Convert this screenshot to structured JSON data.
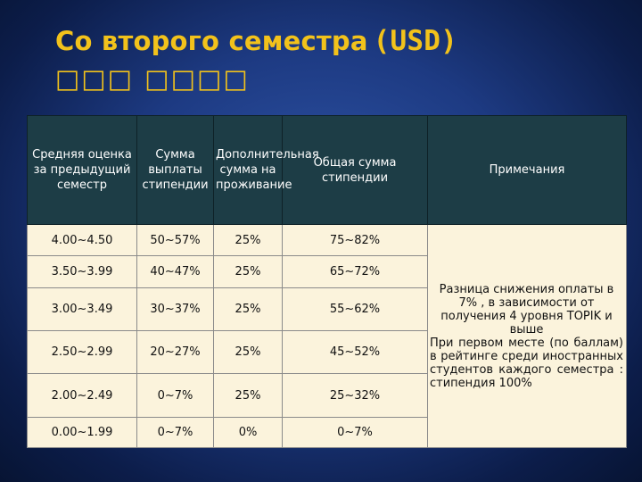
{
  "header": {
    "title": "Со второго семестра",
    "title_unit": "(USD)",
    "subtitle": "□□□ □□□□"
  },
  "table": {
    "columns": [
      "Средняя оценка за предыдущий семестр",
      "Сумма выплаты стипендии",
      "Дополнительная сумма на проживание",
      "Общая сумма стипендии",
      "Примечания"
    ],
    "rows": [
      {
        "grade": "4.00~4.50",
        "payment": "50~57%",
        "extra": "25%",
        "total": "75~82%"
      },
      {
        "grade": "3.50~3.99",
        "payment": "40~47%",
        "extra": "25%",
        "total": "65~72%"
      },
      {
        "grade": "3.00~3.49",
        "payment": "30~37%",
        "extra": "25%",
        "total": "55~62%"
      },
      {
        "grade": "2.50~2.99",
        "payment": "20~27%",
        "extra": "25%",
        "total": "45~52%"
      },
      {
        "grade": "2.00~2.49",
        "payment": "0~7%",
        "extra": "25%",
        "total": "25~32%"
      },
      {
        "grade": "0.00~1.99",
        "payment": "0~7%",
        "extra": "0%",
        "total": "0~7%"
      }
    ],
    "notes_line1": "Разница снижения оплаты в 7% , в зависимости от получения 4 уровня TOPIK и выше",
    "notes_line2": "При первом месте (по баллам) в рейтинге среди иностранных студентов каждого семестра : стипендия 100%"
  },
  "colors": {
    "title": "#f2c21b",
    "header_bg": "#1d3d46",
    "cell_bg": "#fbf3dc",
    "background": "#1d3a82"
  }
}
